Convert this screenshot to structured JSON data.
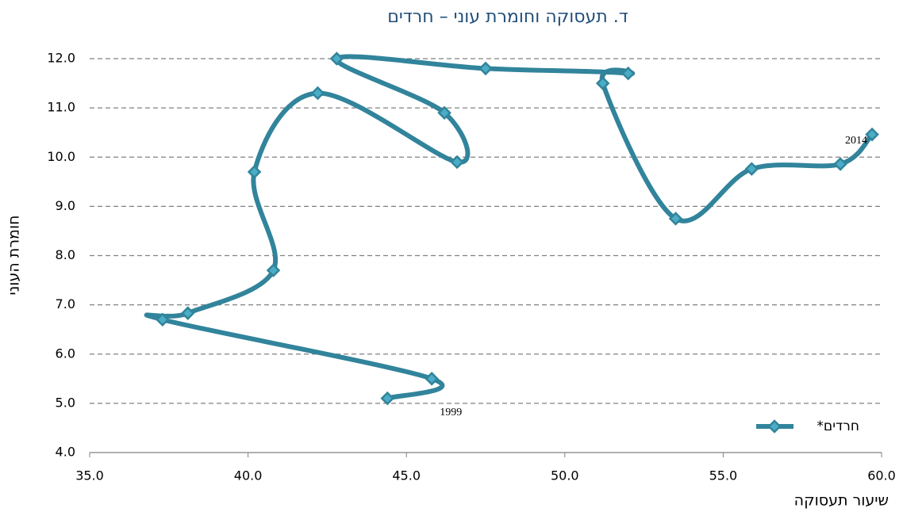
{
  "chart_data": {
    "type": "line",
    "title": "ד.   תעסוקה וחומרת עוני – חרדים",
    "x_label": "שיעור תעסוקה",
    "y_label": "חומרת העוני",
    "series": [
      {
        "name": "חרדים*",
        "color": "#31849b",
        "marker_color": "#4bacc6",
        "x": [
          44.4,
          45.8,
          37.3,
          38.1,
          40.8,
          40.2,
          42.2,
          46.6,
          46.2,
          42.8,
          47.5,
          52.0,
          51.2,
          53.5,
          55.9,
          58.7,
          59.7
        ],
        "values": [
          5.1,
          5.5,
          6.7,
          6.83,
          7.7,
          9.7,
          11.3,
          9.9,
          10.9,
          12.0,
          11.8,
          11.7,
          11.5,
          8.75,
          9.76,
          9.86,
          10.46
        ]
      }
    ],
    "annotations": [
      "1999",
      "2014"
    ],
    "xlim": [
      35,
      60
    ],
    "xticks": [
      {
        "value": 35,
        "label": "35.0"
      },
      {
        "value": 40,
        "label": "40.0"
      },
      {
        "value": 45,
        "label": "45.0"
      },
      {
        "value": 50,
        "label": "50.0"
      },
      {
        "value": 55,
        "label": "55.0"
      },
      {
        "value": 60,
        "label": "60.0"
      }
    ],
    "ylim": [
      4,
      12
    ],
    "yticks": [
      {
        "value": 4,
        "label": "4.0"
      },
      {
        "value": 5,
        "label": "5.0"
      },
      {
        "value": 6,
        "label": "6.0"
      },
      {
        "value": 7,
        "label": "7.0"
      },
      {
        "value": 8,
        "label": "8.0"
      },
      {
        "value": 9,
        "label": "9.0"
      },
      {
        "value": 10,
        "label": "10.0"
      },
      {
        "value": 11,
        "label": "11.0"
      },
      {
        "value": 12,
        "label": "12.0"
      }
    ],
    "grid": true,
    "legend": "lower right"
  }
}
